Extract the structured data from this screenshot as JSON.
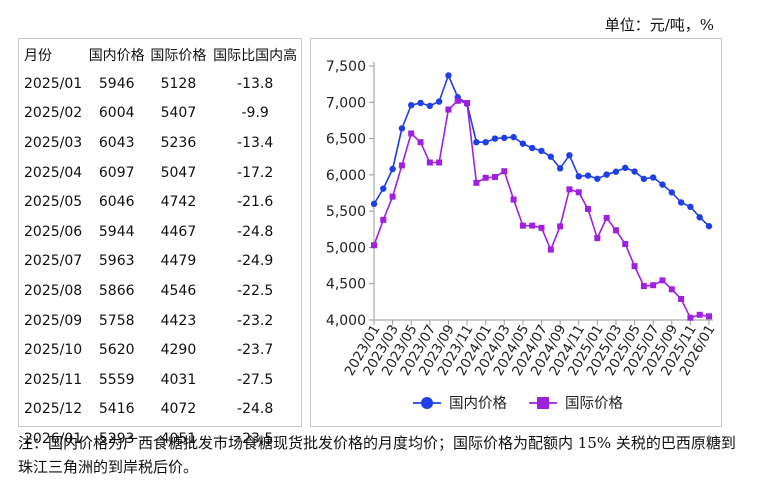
{
  "unit_label": "单位：元/吨，%",
  "table": {
    "headers": [
      "月份",
      "国内价格",
      "国际价格",
      "国际比国内高"
    ],
    "rows": [
      [
        "2025/01",
        "5946",
        "5128",
        "-13.8"
      ],
      [
        "2025/02",
        "6004",
        "5407",
        "-9.9"
      ],
      [
        "2025/03",
        "6043",
        "5236",
        "-13.4"
      ],
      [
        "2025/04",
        "6097",
        "5047",
        "-17.2"
      ],
      [
        "2025/05",
        "6046",
        "4742",
        "-21.6"
      ],
      [
        "2025/06",
        "5944",
        "4467",
        "-24.8"
      ],
      [
        "2025/07",
        "5963",
        "4479",
        "-24.9"
      ],
      [
        "2025/08",
        "5866",
        "4546",
        "-22.5"
      ],
      [
        "2025/09",
        "5758",
        "4423",
        "-23.2"
      ],
      [
        "2025/10",
        "5620",
        "4290",
        "-23.7"
      ],
      [
        "2025/11",
        "5559",
        "4031",
        "-27.5"
      ],
      [
        "2025/12",
        "5416",
        "4072",
        "-24.8"
      ],
      [
        "2026/01",
        "5293",
        "4051",
        "-23.5"
      ]
    ]
  },
  "chart_data": {
    "type": "line",
    "x": [
      "2023/01",
      "2023/02",
      "2023/03",
      "2023/04",
      "2023/05",
      "2023/06",
      "2023/07",
      "2023/08",
      "2023/09",
      "2023/10",
      "2023/11",
      "2023/12",
      "2024/01",
      "2024/02",
      "2024/03",
      "2024/04",
      "2024/05",
      "2024/06",
      "2024/07",
      "2024/08",
      "2024/09",
      "2024/10",
      "2024/11",
      "2024/12",
      "2025/01",
      "2025/02",
      "2025/03",
      "2025/04",
      "2025/05",
      "2025/06",
      "2025/07",
      "2025/08",
      "2025/09",
      "2025/10",
      "2025/11",
      "2025/12",
      "2026/01"
    ],
    "x_tick_labels": [
      "2023/01",
      "2023/03",
      "2023/05",
      "2023/07",
      "2023/09",
      "2023/11",
      "2024/01",
      "2024/03",
      "2024/05",
      "2024/07",
      "2024/09",
      "2024/11",
      "2025/01",
      "2025/03",
      "2025/05",
      "2025/07",
      "2025/09",
      "2025/11",
      "2026/01"
    ],
    "series": [
      {
        "name": "国内价格",
        "color": "#1f3fe6",
        "marker": "circle",
        "values": [
          5600,
          5810,
          6080,
          6640,
          6960,
          6990,
          6950,
          7010,
          7370,
          7070,
          6980,
          6450,
          6450,
          6500,
          6510,
          6520,
          6430,
          6370,
          6330,
          6250,
          6090,
          6270,
          5980,
          5990,
          5946,
          6004,
          6043,
          6097,
          6046,
          5944,
          5963,
          5866,
          5758,
          5620,
          5559,
          5416,
          5293
        ]
      },
      {
        "name": "国际价格",
        "color": "#a020e0",
        "marker": "square",
        "values": [
          5030,
          5380,
          5700,
          6130,
          6570,
          6450,
          6170,
          6170,
          6900,
          7020,
          6990,
          5890,
          5960,
          5970,
          6050,
          5660,
          5300,
          5300,
          5270,
          4970,
          5290,
          5800,
          5760,
          5530,
          5128,
          5407,
          5236,
          5047,
          4742,
          4467,
          4479,
          4546,
          4423,
          4290,
          4031,
          4072,
          4051
        ]
      }
    ],
    "y_ticks": [
      4000,
      4500,
      5000,
      5500,
      6000,
      6500,
      7000,
      7500
    ],
    "y_tick_labels": [
      "4,000",
      "4,500",
      "5,000",
      "5,500",
      "6,000",
      "6,500",
      "7,000",
      "7,500"
    ],
    "ylim": [
      4000,
      7500
    ],
    "grid": false,
    "legend_position": "bottom"
  },
  "note": "注：国内价格为广西食糖批发市场食糖现货批发价格的月度均价；国际价格为配额内 15% 关税的巴西原糖到珠江三角洲的到岸税后价。"
}
